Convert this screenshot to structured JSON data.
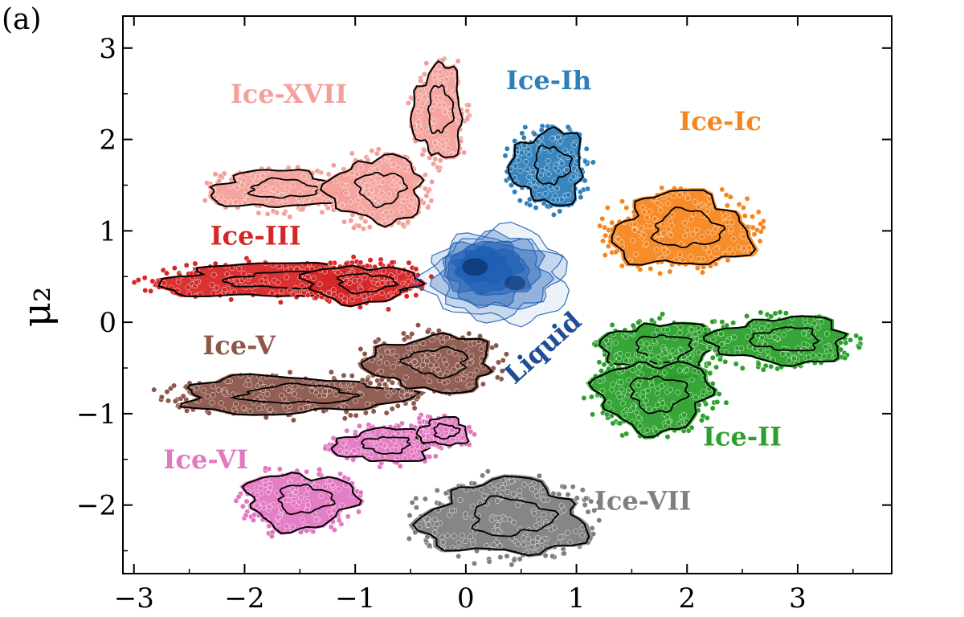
{
  "panel_label": "(a)",
  "chart_data": {
    "type": "scatter",
    "title": "",
    "xlabel": "",
    "ylabel": "μ₂",
    "xlim": [
      -3.1,
      3.85
    ],
    "ylim": [
      -2.75,
      3.35
    ],
    "x_ticks": [
      -3,
      -2,
      -1,
      0,
      1,
      2,
      3
    ],
    "x_tick_labels": [
      "−3",
      "−2",
      "−1",
      "0",
      "1",
      "2",
      "3"
    ],
    "y_ticks": [
      -2,
      -1,
      0,
      1,
      2,
      3
    ],
    "y_tick_labels": [
      "−2",
      "−1",
      "0",
      "1",
      "2",
      "3"
    ],
    "grid": false,
    "legend": "none (phases labelled directly on plot)",
    "series": [
      {
        "name": "Ice-Ih",
        "color": "#2f7fb8",
        "clusters": [
          {
            "center": [
              0.75,
              1.7
            ],
            "spread": [
              0.32,
              0.4
            ]
          }
        ]
      },
      {
        "name": "Ice-Ic",
        "color": "#f5861f",
        "clusters": [
          {
            "center": [
              1.95,
              1.0
            ],
            "spread": [
              0.6,
              0.4
            ]
          }
        ]
      },
      {
        "name": "Ice-XVII",
        "color": "#f4a09a",
        "clusters": [
          {
            "center": [
              -1.7,
              1.45
            ],
            "spread": [
              0.6,
              0.2
            ]
          },
          {
            "center": [
              -0.8,
              1.45
            ],
            "spread": [
              0.42,
              0.35
            ]
          },
          {
            "center": [
              -0.25,
              2.3
            ],
            "spread": [
              0.22,
              0.5
            ]
          }
        ]
      },
      {
        "name": "Ice-III",
        "color": "#d62728",
        "clusters": [
          {
            "center": [
              -1.7,
              0.45
            ],
            "spread": [
              1.05,
              0.18
            ]
          },
          {
            "center": [
              -0.95,
              0.42
            ],
            "spread": [
              0.5,
              0.2
            ]
          }
        ]
      },
      {
        "name": "Ice-V",
        "color": "#8c564b",
        "clusters": [
          {
            "center": [
              -1.6,
              -0.8
            ],
            "spread": [
              1.0,
              0.2
            ]
          },
          {
            "center": [
              -0.3,
              -0.45
            ],
            "spread": [
              0.55,
              0.3
            ]
          }
        ]
      },
      {
        "name": "Ice-VI",
        "color": "#e377c2",
        "clusters": [
          {
            "center": [
              -1.5,
              -1.95
            ],
            "spread": [
              0.48,
              0.3
            ]
          },
          {
            "center": [
              -0.75,
              -1.35
            ],
            "spread": [
              0.42,
              0.18
            ]
          },
          {
            "center": [
              -0.2,
              -1.2
            ],
            "spread": [
              0.22,
              0.15
            ]
          }
        ]
      },
      {
        "name": "Ice-VII",
        "color": "#7f7f7f",
        "clusters": [
          {
            "center": [
              0.35,
              -2.15
            ],
            "spread": [
              0.72,
              0.4
            ]
          }
        ]
      },
      {
        "name": "Ice-II",
        "color": "#2ca02c",
        "clusters": [
          {
            "center": [
              1.75,
              -0.3
            ],
            "spread": [
              0.48,
              0.3
            ]
          },
          {
            "center": [
              2.85,
              -0.2
            ],
            "spread": [
              0.6,
              0.25
            ]
          },
          {
            "center": [
              1.7,
              -0.8
            ],
            "spread": [
              0.5,
              0.38
            ]
          }
        ]
      },
      {
        "name": "Liquid",
        "color": "#1f5fb4",
        "render": "density-contours",
        "center": [
          0.3,
          0.5
        ],
        "spread": [
          0.5,
          0.4
        ]
      }
    ],
    "labels": [
      {
        "text": "Ice-XVII",
        "x": -1.6,
        "y": 2.4,
        "color": "#f4a09a"
      },
      {
        "text": "Ice-Ih",
        "x": 0.75,
        "y": 2.55,
        "color": "#2f7fb8"
      },
      {
        "text": "Ice-Ic",
        "x": 2.3,
        "y": 2.1,
        "color": "#f5861f"
      },
      {
        "text": "Ice-III",
        "x": -1.9,
        "y": 0.85,
        "color": "#d62728"
      },
      {
        "text": "Ice-V",
        "x": -2.05,
        "y": -0.35,
        "color": "#8c564b"
      },
      {
        "text": "Ice-VI",
        "x": -2.35,
        "y": -1.6,
        "color": "#e377c2"
      },
      {
        "text": "Ice-VII",
        "x": 1.6,
        "y": -2.05,
        "color": "#7f7f7f"
      },
      {
        "text": "Ice-II",
        "x": 2.5,
        "y": -1.35,
        "color": "#2ca02c"
      },
      {
        "text": "Liquid",
        "x": 0.75,
        "y": -0.35,
        "color": "#1f4e96",
        "rotation": -42
      }
    ]
  }
}
